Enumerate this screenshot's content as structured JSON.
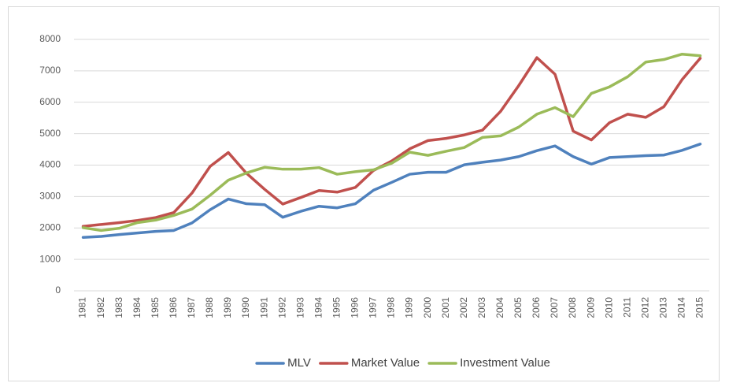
{
  "chart_data": {
    "type": "line",
    "categories": [
      "1981",
      "1982",
      "1983",
      "1984",
      "1985",
      "1986",
      "1987",
      "1988",
      "1989",
      "1990",
      "1991",
      "1992",
      "1993",
      "1994",
      "1995",
      "1996",
      "1997",
      "1998",
      "1999",
      "2000",
      "2001",
      "2002",
      "2003",
      "2004",
      "2005",
      "2006",
      "2007",
      "2008",
      "2009",
      "2010",
      "2011",
      "2012",
      "2013",
      "2014",
      "2015"
    ],
    "series": [
      {
        "name": "MLV",
        "color": "#4f81bd",
        "values": [
          1700,
          1730,
          1790,
          1840,
          1890,
          1920,
          2160,
          2580,
          2920,
          2770,
          2740,
          2340,
          2530,
          2690,
          2640,
          2770,
          3200,
          3450,
          3710,
          3770,
          3770,
          4010,
          4090,
          4160,
          4270,
          4460,
          4610,
          4270,
          4030,
          4240,
          4270,
          4300,
          4320,
          4470,
          4670
        ]
      },
      {
        "name": "Market Value",
        "color": "#c0504d",
        "values": [
          2050,
          2110,
          2170,
          2240,
          2330,
          2490,
          3110,
          3960,
          4400,
          3740,
          3230,
          2760,
          2970,
          3190,
          3140,
          3290,
          3830,
          4130,
          4520,
          4780,
          4850,
          4960,
          5110,
          5710,
          6530,
          7420,
          6890,
          5080,
          4800,
          5350,
          5620,
          5520,
          5860,
          6720,
          7400
        ]
      },
      {
        "name": "Investment Value",
        "color": "#9bbb59",
        "values": [
          2010,
          1920,
          1990,
          2170,
          2250,
          2400,
          2600,
          3040,
          3520,
          3750,
          3930,
          3870,
          3870,
          3920,
          3710,
          3790,
          3850,
          4060,
          4410,
          4310,
          4440,
          4560,
          4880,
          4930,
          5210,
          5620,
          5830,
          5540,
          6280,
          6490,
          6810,
          7280,
          7360,
          7530,
          7480
        ]
      }
    ],
    "ylim": [
      0,
      8000
    ],
    "yticks": [
      0,
      1000,
      2000,
      3000,
      4000,
      5000,
      6000,
      7000,
      8000
    ],
    "grid": true,
    "legend": "bottom"
  }
}
